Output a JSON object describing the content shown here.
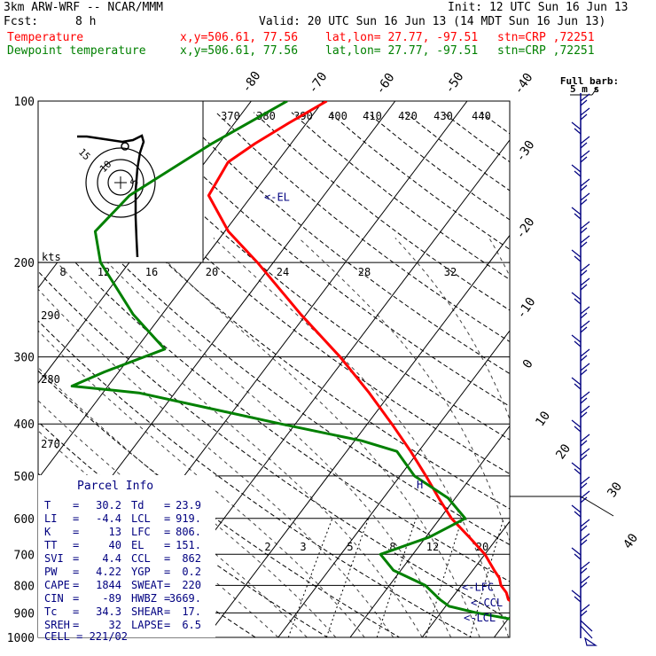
{
  "header": {
    "model": "3km ARW-WRF -- NCAR/MMM",
    "init": "Init: 12 UTC Sun 16 Jun 13",
    "fcst_label": "Fcst:",
    "fcst_value": "8 h",
    "valid": "Valid: 20 UTC Sun 16 Jun 13 (14 MDT Sun 16 Jun 13)",
    "temp_label": "Temperature",
    "dew_label": "Dewpoint temperature",
    "xy": "x,y=506.61, 77.56",
    "latlon": "lat,lon= 27.77, -97.51",
    "stn": "stn=CRP ,72251"
  },
  "colors": {
    "temperature": "#ff0000",
    "dewpoint": "#008000",
    "parcel": "#000080",
    "wind": "#000080"
  },
  "chart_data": {
    "type": "line",
    "title": "",
    "xlabel": "",
    "ylabel": "",
    "y_scale": "log",
    "ylim": [
      1000,
      100
    ],
    "pressure_ticks": [
      100,
      200,
      300,
      400,
      500,
      600,
      700,
      800,
      900,
      1000
    ],
    "isotherm_labels": [
      "-80",
      "-70",
      "-60",
      "-50",
      "-40",
      "-30",
      "-20",
      "-10",
      "0",
      "10",
      "20",
      "30",
      "40"
    ],
    "theta_labels": [
      "290",
      "280",
      "270"
    ],
    "theta_e_labels": [
      "370",
      "380",
      "390",
      "400",
      "410",
      "420",
      "430",
      "440"
    ],
    "mixing_ratio_labels": [
      "2",
      "3",
      "5",
      "8",
      "12",
      "20"
    ],
    "series": [
      {
        "name": "Temperature",
        "points": [
          {
            "p": 1000,
            "t": 30.2
          },
          {
            "p": 975,
            "t": 25.5
          },
          {
            "p": 950,
            "t": 23
          },
          {
            "p": 925,
            "t": 22.5
          },
          {
            "p": 900,
            "t": 21
          },
          {
            "p": 875,
            "t": 20
          },
          {
            "p": 850,
            "t": 18
          },
          {
            "p": 825,
            "t": 17
          },
          {
            "p": 800,
            "t": 15.5
          },
          {
            "p": 775,
            "t": 14.5
          },
          {
            "p": 750,
            "t": 13
          },
          {
            "p": 700,
            "t": 10
          },
          {
            "p": 650,
            "t": 6
          },
          {
            "p": 600,
            "t": 1.6
          },
          {
            "p": 550,
            "t": -2.3
          },
          {
            "p": 500,
            "t": -6.4
          },
          {
            "p": 450,
            "t": -11.1
          },
          {
            "p": 400,
            "t": -16.6
          },
          {
            "p": 350,
            "t": -23
          },
          {
            "p": 300,
            "t": -30.8
          },
          {
            "p": 250,
            "t": -40.7
          },
          {
            "p": 200,
            "t": -52.2
          },
          {
            "p": 175,
            "t": -59.5
          },
          {
            "p": 150,
            "t": -66
          },
          {
            "p": 130,
            "t": -66.8
          },
          {
            "p": 120,
            "t": -65
          },
          {
            "p": 110,
            "t": -62.5
          },
          {
            "p": 100,
            "t": -59.5
          }
        ]
      },
      {
        "name": "Dewpoint temperature",
        "points": [
          {
            "p": 1000,
            "t": 23.9
          },
          {
            "p": 975,
            "t": 23.4
          },
          {
            "p": 950,
            "t": 22.5
          },
          {
            "p": 925,
            "t": 20.5
          },
          {
            "p": 900,
            "t": 15
          },
          {
            "p": 875,
            "t": 10.5
          },
          {
            "p": 850,
            "t": 8.5
          },
          {
            "p": 800,
            "t": 5
          },
          {
            "p": 750,
            "t": -1
          },
          {
            "p": 700,
            "t": -4.5
          },
          {
            "p": 650,
            "t": 0.5
          },
          {
            "p": 600,
            "t": 3.5
          },
          {
            "p": 550,
            "t": -1
          },
          {
            "p": 500,
            "t": -8
          },
          {
            "p": 450,
            "t": -13
          },
          {
            "p": 430,
            "t": -19
          },
          {
            "p": 400,
            "t": -32
          },
          {
            "p": 350,
            "t": -55
          },
          {
            "p": 340,
            "t": -65
          },
          {
            "p": 320,
            "t": -62
          },
          {
            "p": 290,
            "t": -56
          },
          {
            "p": 250,
            "t": -64
          },
          {
            "p": 200,
            "t": -74
          },
          {
            "p": 175,
            "t": -78
          },
          {
            "p": 150,
            "t": -77
          },
          {
            "p": 120,
            "t": -71
          },
          {
            "p": 100,
            "t": -65
          }
        ]
      }
    ],
    "markers": {
      "EL": {
        "p": 151,
        "label": "<-EL"
      },
      "LFC": {
        "p": 806,
        "label": "<-LFC"
      },
      "CCL": {
        "p": 862,
        "label": "<-CCL"
      },
      "LCL": {
        "p": 919,
        "label": "<-LCL"
      },
      "H": {
        "p": 520,
        "label": "H"
      }
    },
    "hodograph": {
      "units": "kts",
      "ring_labels": [
        "5",
        "10",
        "15"
      ],
      "x_ticks": [
        "8",
        "12",
        "16",
        "20",
        "24",
        "28",
        "32"
      ]
    },
    "wind_profile": {
      "title": "Full barb:",
      "units": "5 m s",
      "speed_labels": [
        "30",
        "40"
      ]
    }
  },
  "parcel_info": {
    "title": "Parcel Info",
    "rows": [
      [
        "T",
        "30.2",
        "Td",
        "23.9"
      ],
      [
        "LI",
        "-4.4",
        "LCL",
        "919."
      ],
      [
        "K",
        "13",
        "LFC",
        "806."
      ],
      [
        "TT",
        "40",
        "EL",
        "151."
      ],
      [
        "SVI",
        "4.4",
        "CCL",
        "862"
      ],
      [
        "PW",
        "4.22",
        "YGP",
        "0.2"
      ],
      [
        "CAPE",
        "1844",
        "SWEAT",
        "220"
      ],
      [
        "CIN",
        "-89",
        "HWBZ",
        "3669."
      ],
      [
        "Tc",
        "34.3",
        "SHEAR",
        "17."
      ],
      [
        "SREH",
        "32",
        "LAPSE",
        "6.5"
      ]
    ],
    "cell": "CELL = 221/02"
  }
}
